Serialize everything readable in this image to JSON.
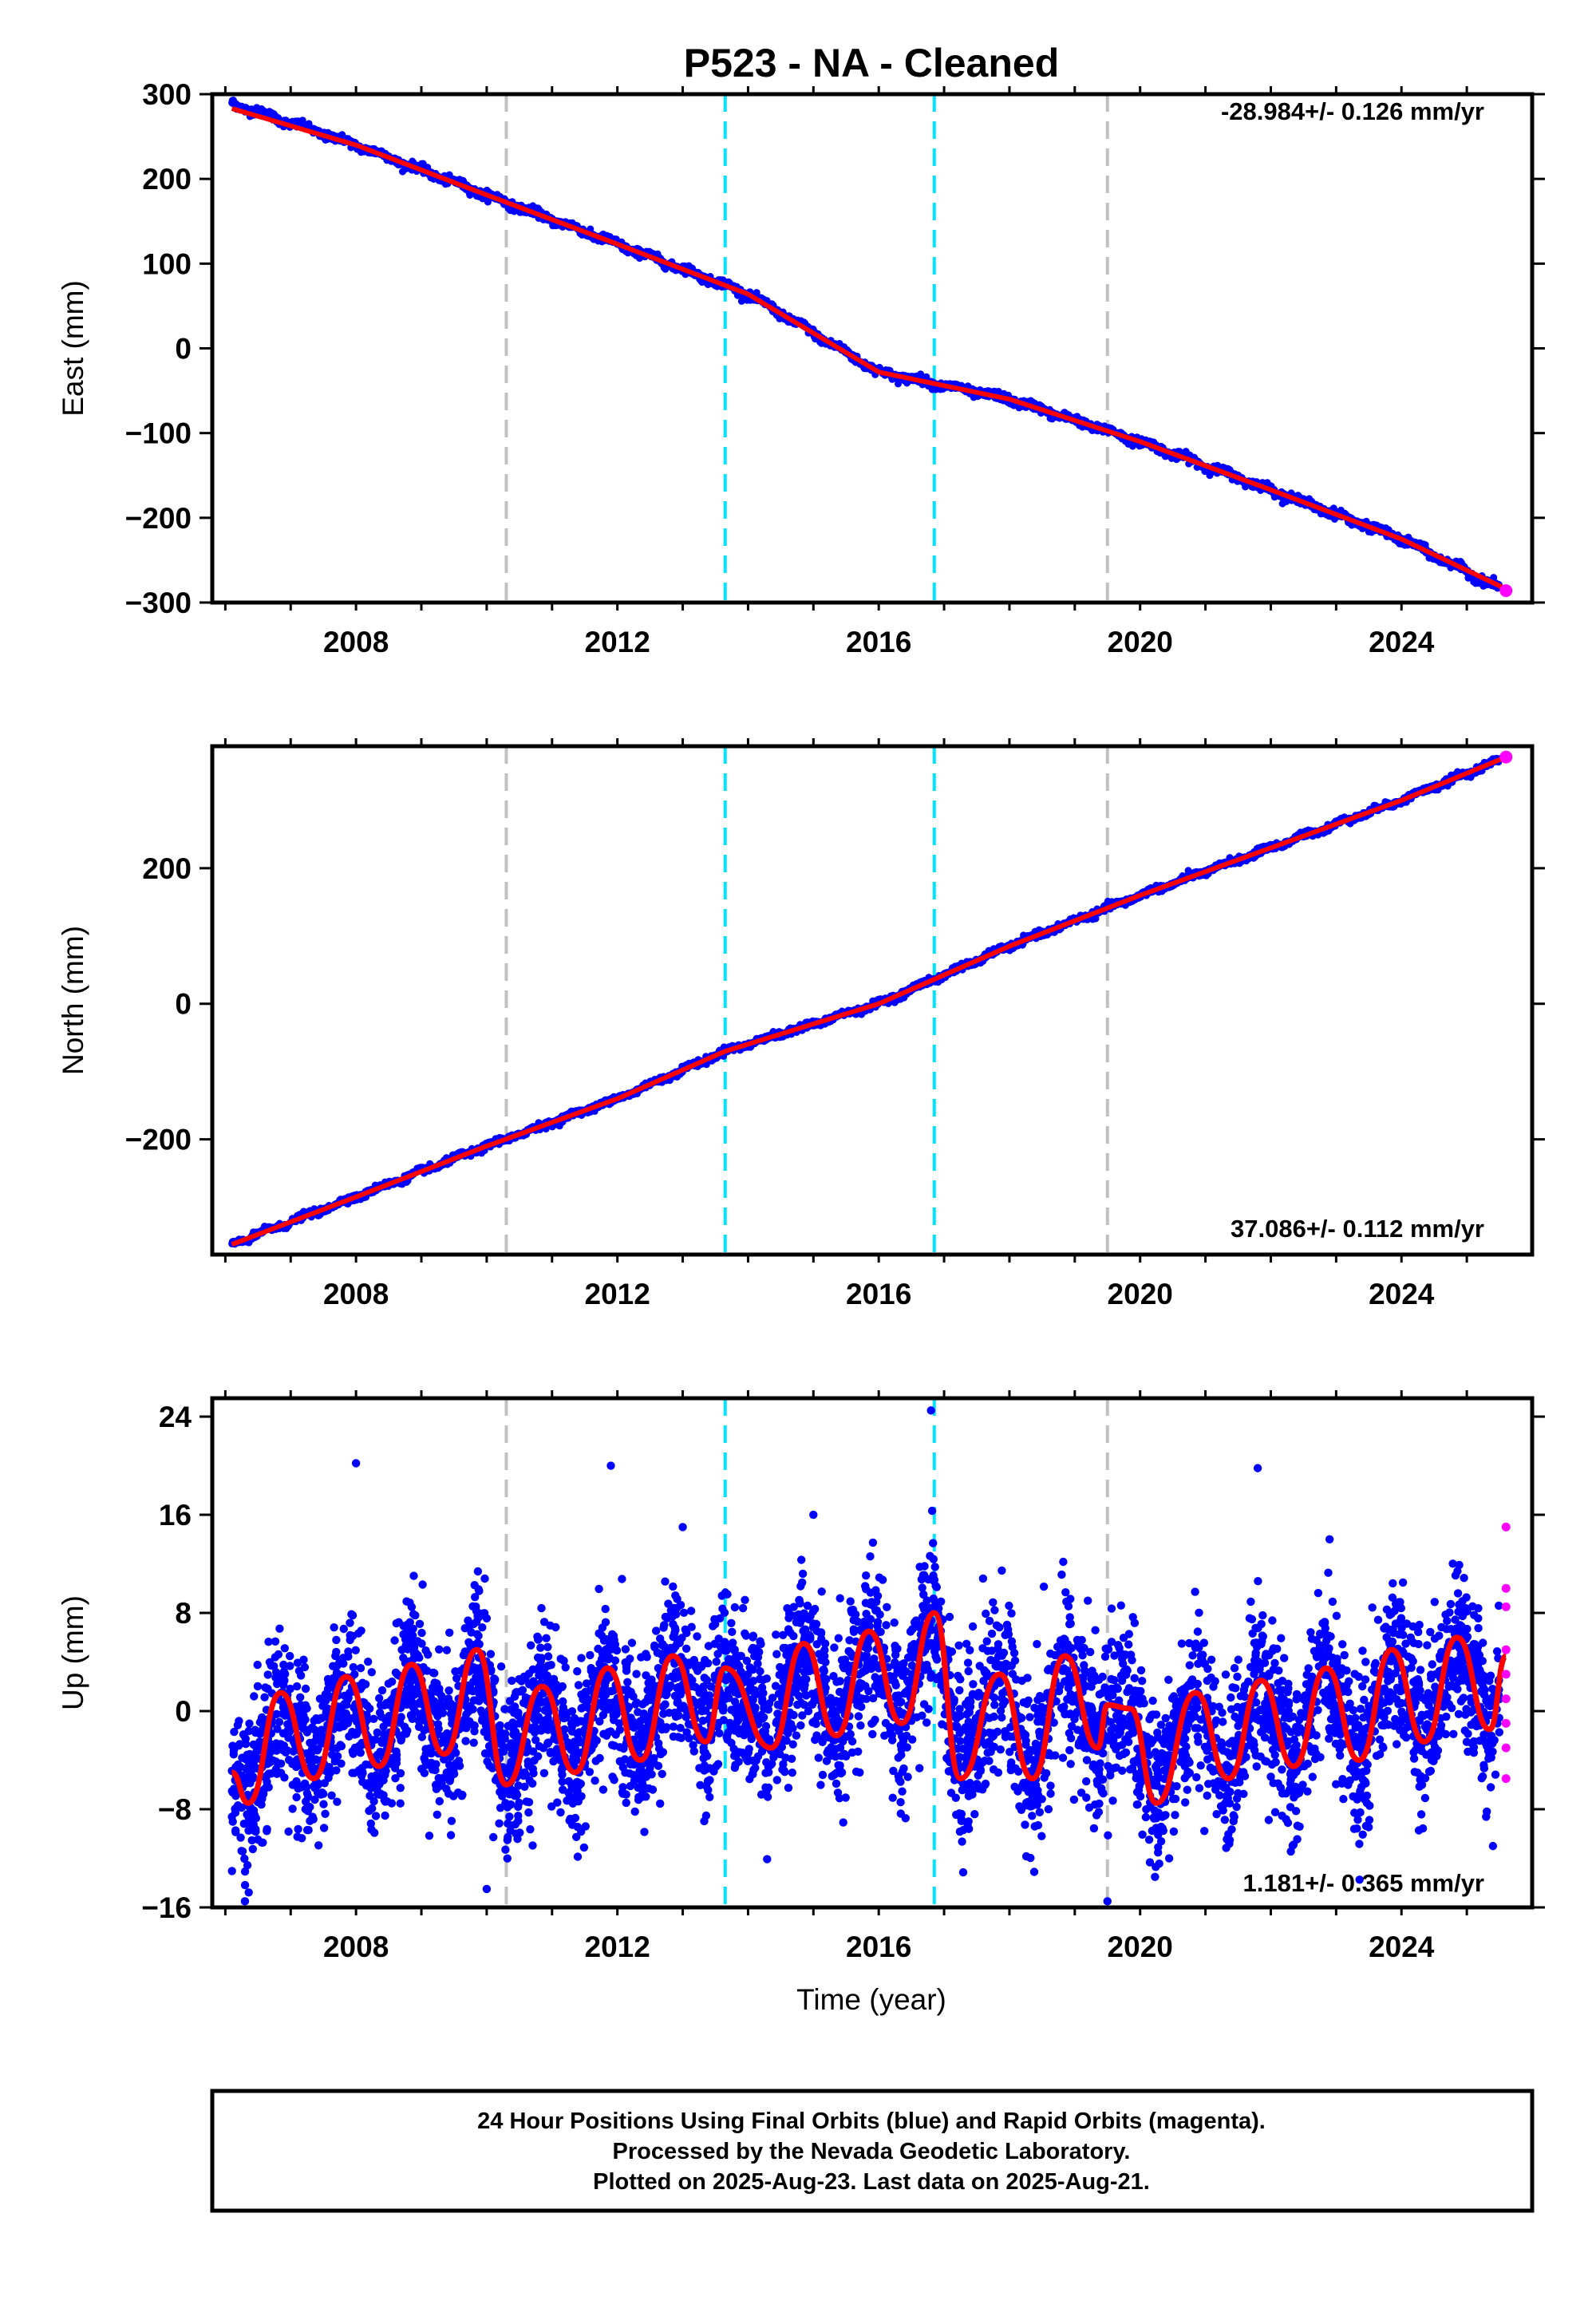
{
  "title": "P523  - NA - Cleaned",
  "xlabel": "Time (year)",
  "footer": [
    "24 Hour Positions Using Final Orbits (blue) and Rapid Orbits (magenta).",
    "Processed by the Nevada Geodetic Laboratory.",
    "Plotted on 2025-Aug-23. Last data on 2025-Aug-21."
  ],
  "colors": {
    "final_orbits": "#0000ff",
    "rapid_orbits": "#ff00ff",
    "model": "#ff0000",
    "equipment_change": "#c0c0c0",
    "earthquake_event": "#00e5ff"
  },
  "chart_data": [
    {
      "type": "scatter",
      "panel": "east",
      "ylabel": "East (mm)",
      "rate_label": "-28.984+/- 0.126 mm/yr",
      "xlim": [
        2005.8,
        2026.0
      ],
      "ylim": [
        -300,
        300
      ],
      "xticks": [
        "2008",
        "2012",
        "2016",
        "2020",
        "2024"
      ],
      "yticks": [
        "300",
        "200",
        "100",
        "0",
        "−100",
        "−200",
        "−300"
      ],
      "series": [
        {
          "name": "Final Orbits (blue)",
          "x": [
            2006.1,
            2008,
            2010,
            2012,
            2014,
            2016,
            2018,
            2020,
            2022,
            2024,
            2025.5
          ],
          "y": [
            289,
            240,
            181,
            123,
            64,
            -28,
            -60,
            -110,
            -167,
            -225,
            -283
          ]
        },
        {
          "name": "Rapid Orbits (magenta)",
          "x": [
            2025.6
          ],
          "y": [
            -286
          ]
        }
      ],
      "model": {
        "x": [
          2006.1,
          2008,
          2010,
          2012,
          2014,
          2016,
          2018,
          2020,
          2022,
          2024,
          2025.6
        ],
        "y": [
          283,
          240,
          181,
          123,
          64,
          -28,
          -60,
          -110,
          -167,
          -225,
          -284
        ]
      },
      "vlines_gray": [
        2010.3,
        2019.5
      ],
      "vlines_cyan": [
        2013.65,
        2016.85
      ]
    },
    {
      "type": "scatter",
      "panel": "north",
      "ylabel": "North (mm)",
      "rate_label": "37.086+/- 0.112 mm/yr",
      "xlim": [
        2005.8,
        2026.0
      ],
      "ylim": [
        -370,
        380
      ],
      "xticks": [
        "2008",
        "2012",
        "2016",
        "2020",
        "2024"
      ],
      "yticks": [
        "200",
        "0",
        "−200"
      ],
      "series": [
        {
          "name": "Final Orbits (blue)",
          "x": [
            2006.1,
            2008,
            2010,
            2012,
            2013.65,
            2016,
            2018,
            2020,
            2022,
            2024,
            2025.5
          ],
          "y": [
            -355,
            -285,
            -210,
            -140,
            -70,
            0,
            85,
            160,
            230,
            300,
            360
          ]
        },
        {
          "name": "Rapid Orbits (magenta)",
          "x": [
            2025.6
          ],
          "y": [
            364
          ]
        }
      ],
      "model": {
        "x": [
          2006.1,
          2008,
          2010,
          2012,
          2013.65,
          2016,
          2018,
          2020,
          2022,
          2024,
          2025.6
        ],
        "y": [
          -355,
          -285,
          -210,
          -140,
          -70,
          0,
          85,
          160,
          230,
          300,
          364
        ]
      },
      "vlines_gray": [
        2010.3,
        2019.5
      ],
      "vlines_cyan": [
        2013.65,
        2016.85
      ]
    },
    {
      "type": "scatter",
      "panel": "up",
      "ylabel": "Up (mm)",
      "rate_label": "1.181+/- 0.365 mm/yr",
      "xlim": [
        2005.8,
        2026.0
      ],
      "ylim": [
        -16,
        25.5
      ],
      "xticks": [
        "2008",
        "2012",
        "2016",
        "2020",
        "2024"
      ],
      "yticks": [
        "24",
        "16",
        "8",
        "0",
        "−8",
        "−16"
      ],
      "series": [
        {
          "name": "Final Orbits (blue)",
          "scatter_sd_mm": 3.2,
          "outliers": {
            "x": [
              2008.0,
              2011.9,
              2013.0,
              2015.0,
              2016.8,
              2019.2,
              2021.8,
              2022.9,
              2006.3,
              2010.0,
              2019.5,
              2025.4
            ],
            "y": [
              20.2,
              20.0,
              15.0,
              16.0,
              24.5,
              9.0,
              19.8,
              14.0,
              -15.5,
              -14.5,
              -15.5,
              -11.0
            ]
          }
        },
        {
          "name": "Rapid Orbits (magenta)",
          "x": [
            2025.6,
            2025.6,
            2025.6,
            2025.6,
            2025.6,
            2025.6,
            2025.6,
            2025.6,
            2025.6
          ],
          "y": [
            15.0,
            10.0,
            8.5,
            5.0,
            3.0,
            1.0,
            -1.0,
            -3.0,
            -5.5
          ]
        }
      ],
      "model": {
        "description_points": [
          [
            2006.1,
            -5
          ],
          [
            2006.35,
            -7.5
          ],
          [
            2006.85,
            1.5
          ],
          [
            2007.35,
            -5.5
          ],
          [
            2007.85,
            2.8
          ],
          [
            2008.35,
            -4.5
          ],
          [
            2008.85,
            3.8
          ],
          [
            2009.35,
            -3.5
          ],
          [
            2009.85,
            5.0
          ],
          [
            2010.3,
            -6.0
          ],
          [
            2010.85,
            2.0
          ],
          [
            2011.35,
            -5.0
          ],
          [
            2011.85,
            3.5
          ],
          [
            2012.35,
            -4.0
          ],
          [
            2012.85,
            4.5
          ],
          [
            2013.35,
            -2.5
          ],
          [
            2013.65,
            3.5
          ],
          [
            2014.35,
            -3.0
          ],
          [
            2014.85,
            5.5
          ],
          [
            2015.35,
            -2.0
          ],
          [
            2015.85,
            6.5
          ],
          [
            2016.35,
            -1.0
          ],
          [
            2016.85,
            8.0
          ],
          [
            2017.25,
            -5.5
          ],
          [
            2017.85,
            3.0
          ],
          [
            2018.35,
            -5.5
          ],
          [
            2018.85,
            4.5
          ],
          [
            2019.35,
            -3.0
          ],
          [
            2019.5,
            0.5
          ],
          [
            2019.85,
            0.2
          ],
          [
            2020.25,
            -7.5
          ],
          [
            2020.85,
            1.5
          ],
          [
            2021.35,
            -5.5
          ],
          [
            2021.85,
            2.5
          ],
          [
            2022.35,
            -4.5
          ],
          [
            2022.85,
            3.5
          ],
          [
            2023.35,
            -4.0
          ],
          [
            2023.85,
            5.0
          ],
          [
            2024.35,
            -2.5
          ],
          [
            2024.85,
            6.0
          ],
          [
            2025.35,
            -1.5
          ],
          [
            2025.6,
            4.5
          ]
        ]
      },
      "vlines_gray": [
        2010.3,
        2019.5
      ],
      "vlines_cyan": [
        2013.65,
        2016.85
      ]
    }
  ]
}
